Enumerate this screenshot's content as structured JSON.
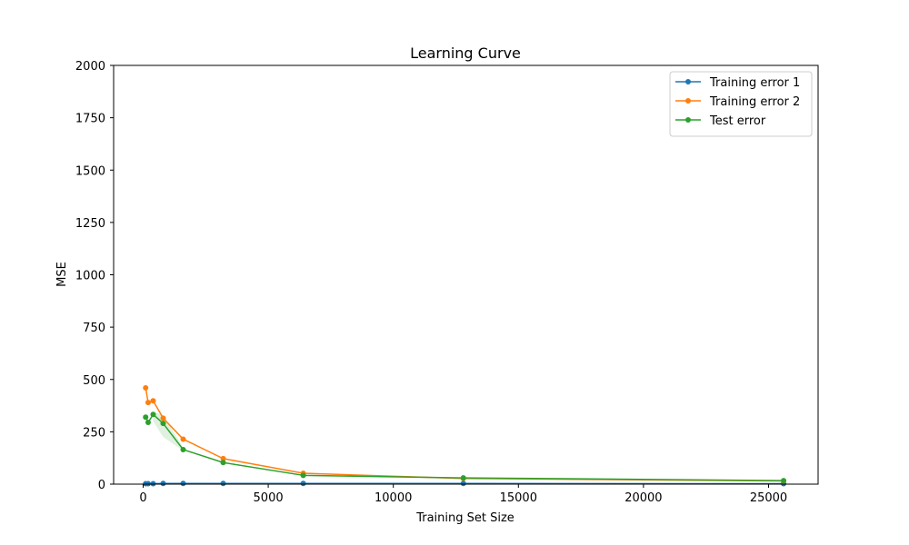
{
  "chart_data": {
    "type": "line",
    "title": "Learning Curve",
    "xlabel": "Training Set Size",
    "ylabel": "MSE",
    "xlim": [
      -1180,
      26980
    ],
    "ylim": [
      0,
      2000
    ],
    "xticks": [
      0,
      5000,
      10000,
      15000,
      20000,
      25000
    ],
    "yticks": [
      0,
      250,
      500,
      750,
      1000,
      1250,
      1500,
      1750,
      2000
    ],
    "grid": false,
    "legend_position": "top-right",
    "x": [
      100,
      200,
      400,
      800,
      1600,
      3200,
      6400,
      12800,
      25600
    ],
    "series": [
      {
        "name": "Training error 1",
        "color": "#1f77b4",
        "values": [
          2,
          2,
          2,
          3,
          3,
          3,
          3,
          3,
          2
        ]
      },
      {
        "name": "Training error 2",
        "color": "#ff7f0e",
        "values": [
          460,
          390,
          398,
          315,
          215,
          122,
          52,
          27,
          15
        ]
      },
      {
        "name": "Test error",
        "color": "#2ca02c",
        "values": [
          320,
          295,
          333,
          290,
          165,
          103,
          42,
          30,
          17
        ]
      }
    ],
    "band": {
      "series": "Test error",
      "color": "#2ca02c",
      "x": [
        400,
        800,
        1600
      ],
      "lower": [
        300,
        225,
        160
      ],
      "upper": [
        345,
        330,
        175
      ]
    }
  }
}
